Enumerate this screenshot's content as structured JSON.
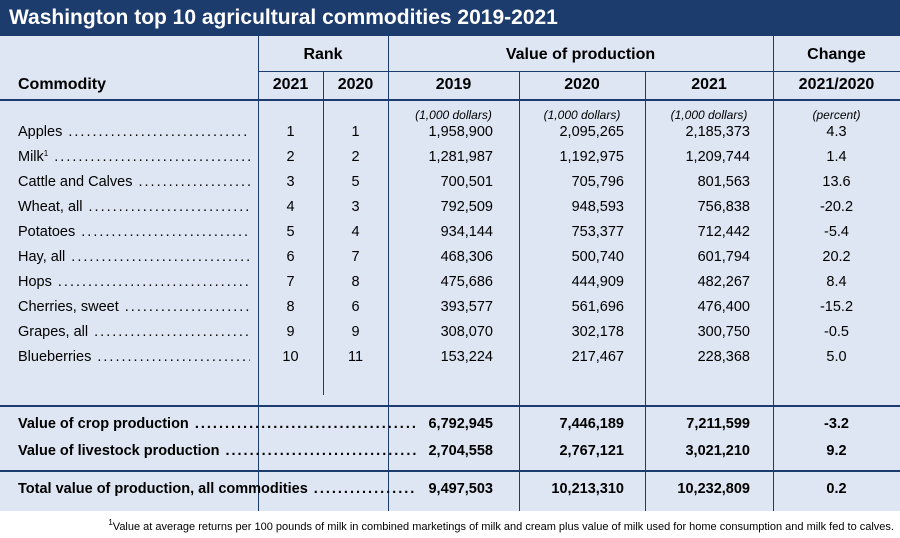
{
  "title": "Washington top 10 agricultural commodities 2019-2021",
  "headers": {
    "rank": "Rank",
    "value": "Value of production",
    "change": "Change",
    "commodity": "Commodity",
    "rank_2021": "2021",
    "rank_2020": "2020",
    "val_2019": "2019",
    "val_2020": "2020",
    "val_2021": "2021",
    "change_period": "2021/2020"
  },
  "units": {
    "v2019": "(1,000 dollars)",
    "v2020": "(1,000 dollars)",
    "v2021": "(1,000 dollars)",
    "change": "(percent)"
  },
  "rows": [
    {
      "name": "Apples",
      "sup": "",
      "rank2021": "1",
      "rank2020": "1",
      "v2019": "1,958,900",
      "v2020": "2,095,265",
      "v2021": "2,185,373",
      "change": "4.3"
    },
    {
      "name": "Milk",
      "sup": "1",
      "rank2021": "2",
      "rank2020": "2",
      "v2019": "1,281,987",
      "v2020": "1,192,975",
      "v2021": "1,209,744",
      "change": "1.4"
    },
    {
      "name": "Cattle and Calves",
      "sup": "",
      "rank2021": "3",
      "rank2020": "5",
      "v2019": "700,501",
      "v2020": "705,796",
      "v2021": "801,563",
      "change": "13.6"
    },
    {
      "name": "Wheat, all",
      "sup": "",
      "rank2021": "4",
      "rank2020": "3",
      "v2019": "792,509",
      "v2020": "948,593",
      "v2021": "756,838",
      "change": "-20.2"
    },
    {
      "name": "Potatoes",
      "sup": "",
      "rank2021": "5",
      "rank2020": "4",
      "v2019": "934,144",
      "v2020": "753,377",
      "v2021": "712,442",
      "change": "-5.4"
    },
    {
      "name": "Hay, all",
      "sup": "",
      "rank2021": "6",
      "rank2020": "7",
      "v2019": "468,306",
      "v2020": "500,740",
      "v2021": "601,794",
      "change": "20.2"
    },
    {
      "name": "Hops",
      "sup": "",
      "rank2021": "7",
      "rank2020": "8",
      "v2019": "475,686",
      "v2020": "444,909",
      "v2021": "482,267",
      "change": "8.4"
    },
    {
      "name": "Cherries, sweet",
      "sup": "",
      "rank2021": "8",
      "rank2020": "6",
      "v2019": "393,577",
      "v2020": "561,696",
      "v2021": "476,400",
      "change": "-15.2"
    },
    {
      "name": "Grapes, all",
      "sup": "",
      "rank2021": "9",
      "rank2020": "9",
      "v2019": "308,070",
      "v2020": "302,178",
      "v2021": "300,750",
      "change": "-0.5"
    },
    {
      "name": "Blueberries",
      "sup": "",
      "rank2021": "10",
      "rank2020": "11",
      "v2019": "153,224",
      "v2020": "217,467",
      "v2021": "228,368",
      "change": "5.0"
    }
  ],
  "summary": [
    {
      "name": "Value of crop production",
      "v2019": "6,792,945",
      "v2020": "7,446,189",
      "v2021": "7,211,599",
      "change": "-3.2"
    },
    {
      "name": "Value of livestock production",
      "v2019": "2,704,558",
      "v2020": "2,767,121",
      "v2021": "3,021,210",
      "change": "9.2"
    }
  ],
  "total": {
    "name": "Total value of production, all commodities",
    "v2019": "9,497,503",
    "v2020": "10,213,310",
    "v2021": "10,232,809",
    "change": "0.2"
  },
  "footnote": {
    "sup": "1",
    "text": "Value at average returns per 100 pounds of milk in combined marketings of milk and cream plus value of milk used for home consumption and milk fed to calves."
  },
  "colors": {
    "header_bg": "#1d3c6e",
    "panel_bg": "#dde6f2",
    "rule": "#1d3c6e"
  }
}
